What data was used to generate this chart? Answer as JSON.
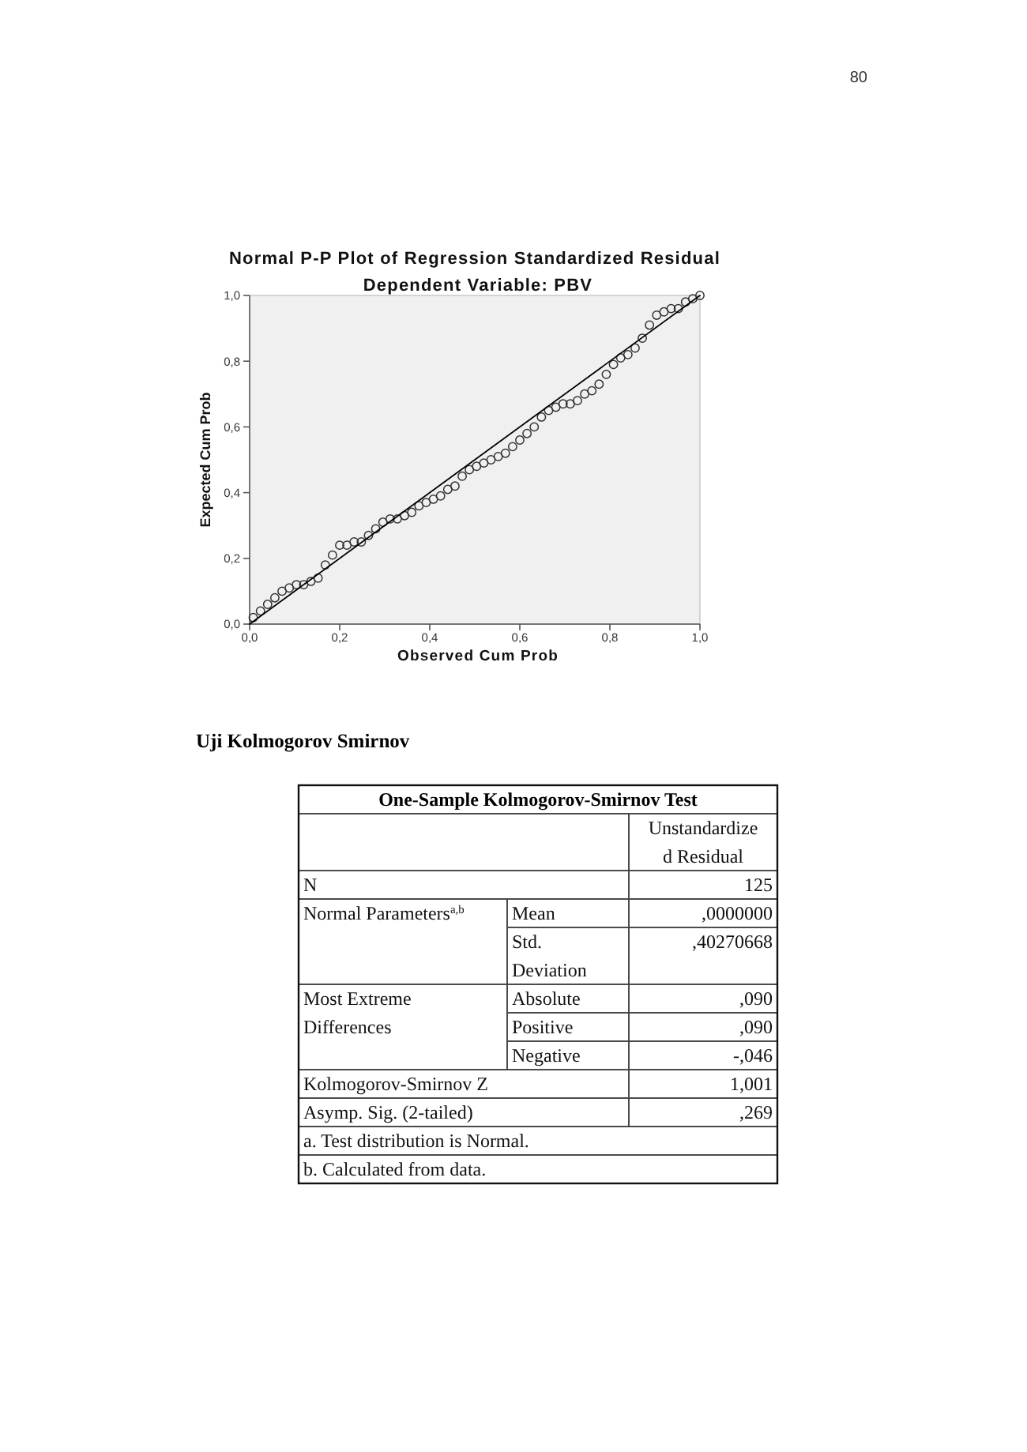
{
  "chart_data": [
    {
      "type": "scatter",
      "title": "Normal P-P Plot of Regression Standardized Residual",
      "subtitle": "Dependent Variable: PBV",
      "xlabel": "Observed Cum Prob",
      "ylabel": "Expected Cum Prob",
      "annotations": [
        "80"
      ],
      "xlim": [
        0,
        1
      ],
      "ylim": [
        0,
        1
      ],
      "xticks": [
        {
          "value": 0,
          "label": "0,0"
        },
        {
          "value": 0.2,
          "label": "0,2"
        },
        {
          "value": 0.4,
          "label": "0,4"
        },
        {
          "value": 0.6,
          "label": "0,6"
        },
        {
          "value": 0.8,
          "label": "0,8"
        },
        {
          "value": 1,
          "label": "1,0"
        }
      ],
      "yticks": [
        {
          "value": 0,
          "label": "0,0"
        },
        {
          "value": 0.2,
          "label": "0,2"
        },
        {
          "value": 0.4,
          "label": "0,4"
        },
        {
          "value": 0.6,
          "label": "0,6"
        },
        {
          "value": 0.8,
          "label": "0,8"
        },
        {
          "value": 1,
          "label": "1,0"
        }
      ],
      "series": [
        {
          "type": "scatter",
          "marker": "circle",
          "color": "#333333",
          "x": [
            0.008,
            0.024,
            0.04,
            0.056,
            0.072,
            0.088,
            0.104,
            0.12,
            0.136,
            0.152,
            0.168,
            0.184,
            0.2,
            0.216,
            0.232,
            0.248,
            0.264,
            0.28,
            0.296,
            0.312,
            0.328,
            0.344,
            0.36,
            0.376,
            0.392,
            0.408,
            0.424,
            0.44,
            0.456,
            0.472,
            0.488,
            0.504,
            0.52,
            0.536,
            0.552,
            0.568,
            0.584,
            0.6,
            0.616,
            0.632,
            0.648,
            0.664,
            0.68,
            0.696,
            0.712,
            0.728,
            0.744,
            0.76,
            0.776,
            0.792,
            0.808,
            0.824,
            0.84,
            0.856,
            0.872,
            0.888,
            0.904,
            0.92,
            0.936,
            0.952,
            0.968,
            0.984,
            1.0
          ],
          "values": [
            0.02,
            0.04,
            0.06,
            0.08,
            0.1,
            0.11,
            0.12,
            0.12,
            0.13,
            0.14,
            0.18,
            0.21,
            0.24,
            0.24,
            0.25,
            0.25,
            0.27,
            0.29,
            0.31,
            0.32,
            0.32,
            0.33,
            0.34,
            0.36,
            0.37,
            0.38,
            0.39,
            0.41,
            0.42,
            0.45,
            0.47,
            0.48,
            0.49,
            0.5,
            0.51,
            0.52,
            0.54,
            0.56,
            0.58,
            0.6,
            0.63,
            0.65,
            0.66,
            0.67,
            0.67,
            0.68,
            0.7,
            0.71,
            0.73,
            0.76,
            0.79,
            0.81,
            0.82,
            0.84,
            0.87,
            0.91,
            0.94,
            0.95,
            0.96,
            0.96,
            0.98,
            0.99,
            1.0
          ]
        },
        {
          "type": "line",
          "marker": "none",
          "color": "#000000",
          "x": [
            0,
            1
          ],
          "values": [
            0,
            1
          ]
        }
      ]
    },
    {
      "type": "other",
      "title": "Uji Kolmogorov Smirnov",
      "subtitle": "One-Sample Kolmogorov-Smirnov Test",
      "annotations": [
        "Unstandardize\nd Residual",
        "N",
        "125",
        "Normal Parameters$^{a,b}$",
        "Mean",
        ",0000000",
        "Std.\nDeviation",
        ",40270668",
        "Most Extreme\nDifferences",
        "Absolute",
        ",090",
        "Positive",
        ",090",
        "Negative",
        "-,046",
        "Kolmogorov-Smirnov Z",
        "1,001",
        "Asymp. Sig. (2-tailed)",
        ",269",
        "a. Test distribution is Normal.",
        "b. Calculated from data."
      ]
    }
  ]
}
